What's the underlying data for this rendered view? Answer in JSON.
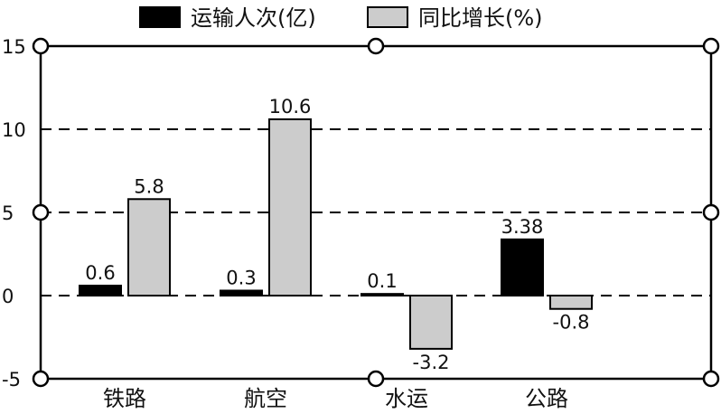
{
  "chart_data": {
    "type": "bar",
    "categories": [
      "铁路",
      "航空",
      "水运",
      "公路"
    ],
    "series": [
      {
        "name": "运输人次(亿)",
        "values": [
          0.6,
          0.3,
          0.1,
          3.38
        ],
        "labels": [
          "0.6",
          "0.3",
          "0.1",
          "3.38"
        ],
        "color": "#000000"
      },
      {
        "name": "同比增长(%)",
        "values": [
          5.8,
          10.6,
          -3.2,
          -0.8
        ],
        "labels": [
          "5.8",
          "10.6",
          "-3.2",
          "-0.8"
        ],
        "color": "#cccccc"
      }
    ],
    "yticks": [
      15,
      10,
      5,
      0,
      -5
    ],
    "ytick_labels": [
      "15",
      "10",
      "5",
      "0",
      "-5"
    ],
    "ylim": [
      -5,
      15
    ],
    "grid": "dashed horizontal at 0, 5, 10",
    "legend": "top-center"
  }
}
